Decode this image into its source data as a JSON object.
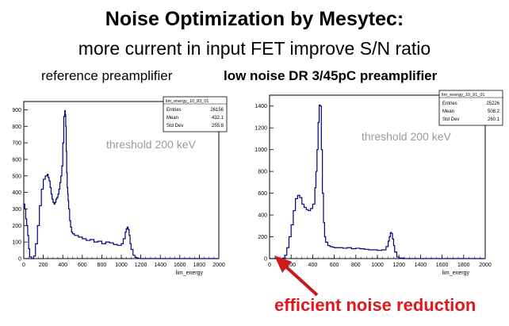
{
  "title": "Noise Optimization by Mesytec:",
  "subtitle": "more current in input FET improve S/N ratio",
  "labels": {
    "left": "reference preamplifier",
    "right": "low noise DR 3/45pC preamplifier"
  },
  "annotation": "efficient noise reduction",
  "colors": {
    "histogram": "#00007f",
    "annotation": "#e3171b",
    "threshold_text": "#9a9a9a",
    "arrow": "#cc1a1a"
  },
  "chart_data": [
    {
      "type": "line",
      "panel": "left",
      "stats": {
        "name": "lim_energy_10_83_01",
        "rows": [
          {
            "label": "Entries",
            "value": "26156"
          },
          {
            "label": "Mean",
            "value": "432.1"
          },
          {
            "label": "Std Dev",
            "value": "255.8"
          }
        ]
      },
      "annotation": "threshold 200 keV",
      "xlabel": "lim_energy",
      "ylabel": "",
      "xlim": [
        0,
        2000
      ],
      "ylim": [
        0,
        950
      ],
      "xticks": [
        0,
        200,
        400,
        600,
        800,
        1000,
        1200,
        1400,
        1600,
        1800,
        2000
      ],
      "yticks": [
        0,
        100,
        200,
        300,
        400,
        500,
        600,
        700,
        800,
        900
      ],
      "x": [
        0,
        10,
        20,
        30,
        40,
        50,
        60,
        80,
        100,
        120,
        140,
        160,
        180,
        200,
        220,
        240,
        250,
        260,
        270,
        280,
        290,
        300,
        310,
        320,
        330,
        340,
        350,
        360,
        370,
        380,
        390,
        400,
        410,
        420,
        425,
        430,
        435,
        440,
        445,
        450,
        455,
        460,
        470,
        480,
        490,
        500,
        520,
        540,
        560,
        600,
        640,
        680,
        720,
        760,
        800,
        840,
        880,
        920,
        960,
        1000,
        1020,
        1040,
        1050,
        1060,
        1070,
        1080,
        1090,
        1100,
        1120,
        1140,
        1160,
        1180,
        1200,
        1250,
        1300,
        1400,
        1600,
        1800,
        2000
      ],
      "values": [
        330,
        300,
        240,
        200,
        140,
        60,
        10,
        0,
        15,
        90,
        200,
        320,
        420,
        480,
        500,
        510,
        490,
        470,
        430,
        390,
        360,
        340,
        330,
        340,
        360,
        370,
        390,
        420,
        460,
        500,
        560,
        700,
        860,
        895,
        870,
        800,
        650,
        520,
        430,
        390,
        350,
        300,
        230,
        190,
        160,
        150,
        140,
        140,
        130,
        120,
        110,
        115,
        100,
        105,
        90,
        100,
        95,
        85,
        80,
        90,
        120,
        160,
        180,
        190,
        175,
        140,
        90,
        55,
        20,
        8,
        3,
        1,
        0,
        0,
        0,
        0,
        0,
        0,
        0
      ]
    },
    {
      "type": "line",
      "panel": "right",
      "stats": {
        "name": "lim_energy_10_91_01",
        "rows": [
          {
            "label": "Entries",
            "value": "25226"
          },
          {
            "label": "Mean",
            "value": "508.2"
          },
          {
            "label": "Std Dev",
            "value": "260.1"
          }
        ]
      },
      "annotation": "threshold 200 keV",
      "xlabel": "lim_energy",
      "ylabel": "",
      "xlim": [
        0,
        2000
      ],
      "ylim": [
        0,
        1500
      ],
      "xticks": [
        0,
        200,
        400,
        600,
        800,
        1000,
        1200,
        1400,
        1600,
        1800,
        2000
      ],
      "yticks": [
        0,
        200,
        400,
        600,
        800,
        1000,
        1200,
        1400
      ],
      "x": [
        0,
        100,
        120,
        140,
        160,
        180,
        200,
        220,
        240,
        260,
        280,
        300,
        320,
        340,
        360,
        380,
        400,
        420,
        430,
        440,
        450,
        460,
        470,
        480,
        490,
        500,
        510,
        520,
        540,
        560,
        580,
        600,
        640,
        680,
        720,
        760,
        800,
        840,
        880,
        920,
        960,
        1000,
        1040,
        1080,
        1100,
        1110,
        1120,
        1130,
        1140,
        1150,
        1160,
        1180,
        1200,
        1250,
        1300,
        1400,
        1600,
        1800,
        2000
      ],
      "values": [
        0,
        0,
        5,
        30,
        100,
        200,
        310,
        440,
        550,
        580,
        560,
        500,
        470,
        450,
        440,
        460,
        500,
        650,
        800,
        1000,
        1250,
        1410,
        1400,
        1000,
        600,
        330,
        200,
        150,
        120,
        110,
        105,
        100,
        100,
        95,
        100,
        90,
        95,
        90,
        85,
        80,
        80,
        75,
        80,
        110,
        160,
        200,
        240,
        230,
        180,
        120,
        60,
        15,
        5,
        0,
        0,
        0,
        0,
        0,
        0
      ]
    }
  ]
}
